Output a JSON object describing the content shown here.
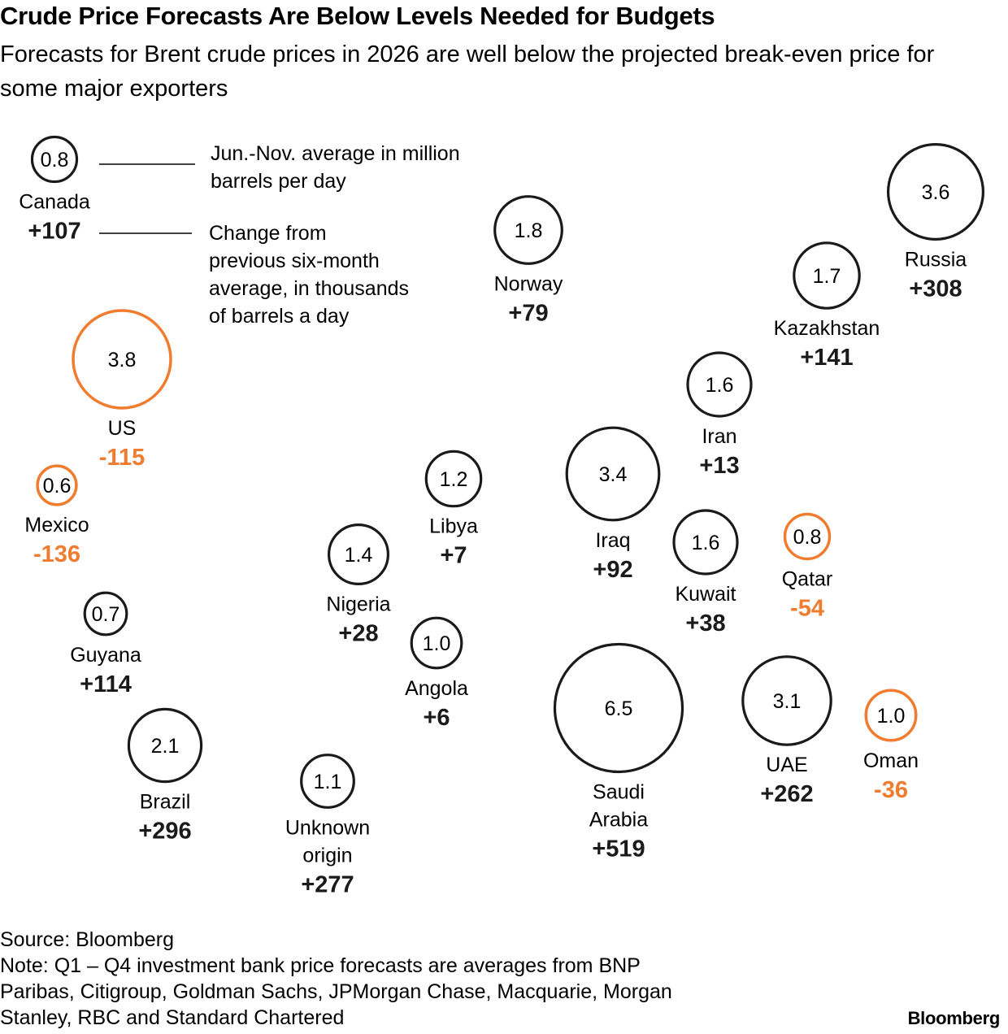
{
  "title": "Crude Price Forecasts Are Below Levels Needed for Budgets",
  "subtitle": "Forecasts for Brent crude prices in 2026 are well below the projected break-even price for some major exporters",
  "legend": {
    "value_label": [
      "Jun.-Nov. average in million",
      "barrels per day"
    ],
    "change_label": [
      "Change from",
      "previous six-month",
      "average, in thousands",
      "of barrels a day"
    ]
  },
  "colors": {
    "increase": "#1a1a1a",
    "decrease": "#f07c30"
  },
  "chart_data": {
    "type": "bubble",
    "value_unit": "million barrels per day (Jun.-Nov. average)",
    "change_unit": "thousand barrels a day (change from previous six-month average)",
    "points": [
      {
        "name": "Canada",
        "label": [
          "Canada"
        ],
        "value": 0.8,
        "value_text": "0.8",
        "change": 107,
        "change_text": "+107"
      },
      {
        "name": "US",
        "label": [
          "US"
        ],
        "value": 3.8,
        "value_text": "3.8",
        "change": -115,
        "change_text": "-115"
      },
      {
        "name": "Mexico",
        "label": [
          "Mexico"
        ],
        "value": 0.6,
        "value_text": "0.6",
        "change": -136,
        "change_text": "-136"
      },
      {
        "name": "Guyana",
        "label": [
          "Guyana"
        ],
        "value": 0.7,
        "value_text": "0.7",
        "change": 114,
        "change_text": "+114"
      },
      {
        "name": "Brazil",
        "label": [
          "Brazil"
        ],
        "value": 2.1,
        "value_text": "2.1",
        "change": 296,
        "change_text": "+296"
      },
      {
        "name": "Unknown origin",
        "label": [
          "Unknown",
          "origin"
        ],
        "value": 1.1,
        "value_text": "1.1",
        "change": 277,
        "change_text": "+277"
      },
      {
        "name": "Nigeria",
        "label": [
          "Nigeria"
        ],
        "value": 1.4,
        "value_text": "1.4",
        "change": 28,
        "change_text": "+28"
      },
      {
        "name": "Libya",
        "label": [
          "Libya"
        ],
        "value": 1.2,
        "value_text": "1.2",
        "change": 7,
        "change_text": "+7"
      },
      {
        "name": "Angola",
        "label": [
          "Angola"
        ],
        "value": 1.0,
        "value_text": "1.0",
        "change": 6,
        "change_text": "+6"
      },
      {
        "name": "Norway",
        "label": [
          "Norway"
        ],
        "value": 1.8,
        "value_text": "1.8",
        "change": 79,
        "change_text": "+79"
      },
      {
        "name": "Iraq",
        "label": [
          "Iraq"
        ],
        "value": 3.4,
        "value_text": "3.4",
        "change": 92,
        "change_text": "+92"
      },
      {
        "name": "Saudi Arabia",
        "label": [
          "Saudi",
          "Arabia"
        ],
        "value": 6.5,
        "value_text": "6.5",
        "change": 519,
        "change_text": "+519"
      },
      {
        "name": "Kuwait",
        "label": [
          "Kuwait"
        ],
        "value": 1.6,
        "value_text": "1.6",
        "change": 38,
        "change_text": "+38"
      },
      {
        "name": "Iran",
        "label": [
          "Iran"
        ],
        "value": 1.6,
        "value_text": "1.6",
        "change": 13,
        "change_text": "+13"
      },
      {
        "name": "Kazakhstan",
        "label": [
          "Kazakhstan"
        ],
        "value": 1.7,
        "value_text": "1.7",
        "change": 141,
        "change_text": "+141"
      },
      {
        "name": "Russia",
        "label": [
          "Russia"
        ],
        "value": 3.6,
        "value_text": "3.6",
        "change": 308,
        "change_text": "+308"
      },
      {
        "name": "Qatar",
        "label": [
          "Qatar"
        ],
        "value": 0.8,
        "value_text": "0.8",
        "change": -54,
        "change_text": "-54"
      },
      {
        "name": "UAE",
        "label": [
          "UAE"
        ],
        "value": 3.1,
        "value_text": "3.1",
        "change": 262,
        "change_text": "+262"
      },
      {
        "name": "Oman",
        "label": [
          "Oman"
        ],
        "value": 1.0,
        "value_text": "1.0",
        "change": -36,
        "change_text": "-36"
      }
    ]
  },
  "footer": {
    "source": "Source: Bloomberg",
    "note": [
      "Note: Q1 – Q4 investment bank price forecasts are averages from BNP",
      "Paribas, Citigroup, Goldman Sachs, JPMorgan Chase, Macquarie, Morgan",
      "Stanley, RBC and Standard Chartered"
    ],
    "brand": "Bloomberg"
  }
}
